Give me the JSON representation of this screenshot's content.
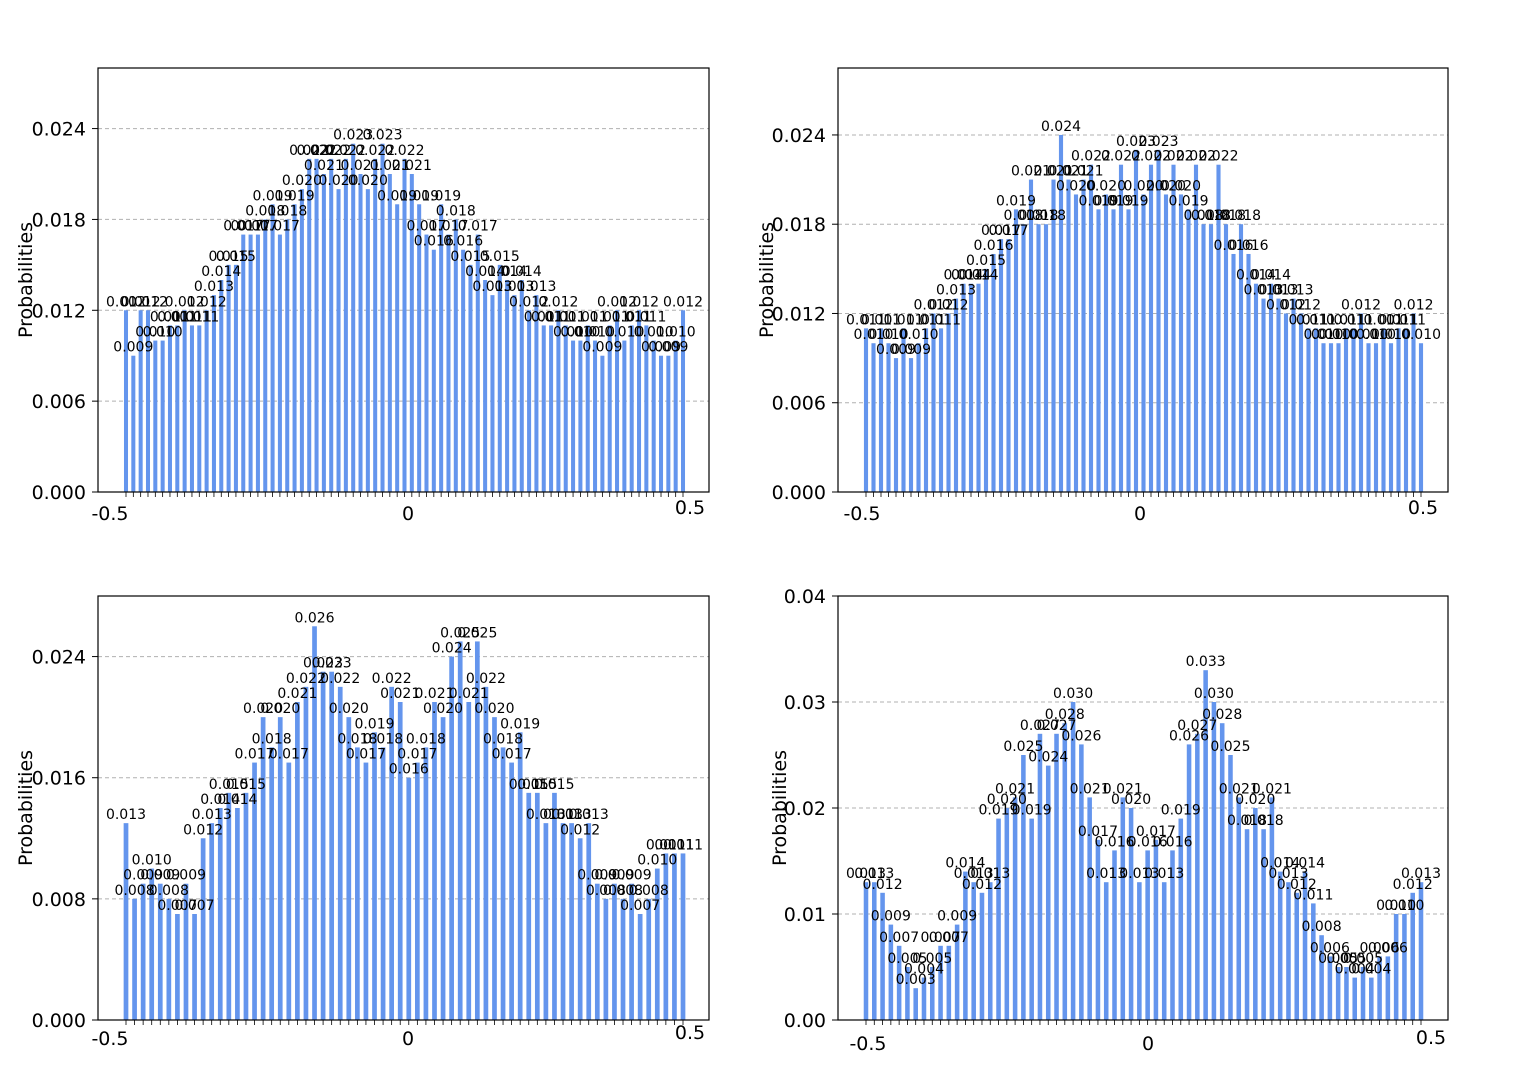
{
  "figure": {
    "bar_color": "#6495ED",
    "grid_color": "#b0b0b0",
    "axis_color": "#000000"
  },
  "chart_data": [
    {
      "type": "bar",
      "ylabel": "Probabilities",
      "ylim": [
        0,
        0.028
      ],
      "yticks": [
        0.0,
        0.006,
        0.012,
        0.018,
        0.024
      ],
      "ytick_labels": [
        "0.000",
        "0.006",
        "0.012",
        "0.018",
        "0.024"
      ],
      "xtick_labels": [
        "-0.5",
        "0",
        "0.5"
      ],
      "grid": "y-dashed",
      "labels_shown": true,
      "values": [
        0.012,
        0.009,
        0.012,
        0.012,
        0.01,
        0.01,
        0.011,
        0.011,
        0.012,
        0.011,
        0.011,
        0.012,
        0.013,
        0.014,
        0.015,
        0.015,
        0.017,
        0.017,
        0.017,
        0.018,
        0.019,
        0.017,
        0.018,
        0.019,
        0.02,
        0.022,
        0.022,
        0.021,
        0.022,
        0.02,
        0.022,
        0.023,
        0.021,
        0.02,
        0.022,
        0.023,
        0.021,
        0.019,
        0.022,
        0.021,
        0.019,
        0.017,
        0.016,
        0.019,
        0.017,
        0.018,
        0.016,
        0.015,
        0.017,
        0.014,
        0.013,
        0.015,
        0.014,
        0.013,
        0.014,
        0.012,
        0.013,
        0.011,
        0.011,
        0.012,
        0.011,
        0.01,
        0.01,
        0.011,
        0.01,
        0.009,
        0.011,
        0.012,
        0.01,
        0.011,
        0.012,
        0.011,
        0.01,
        0.009,
        0.009,
        0.01,
        0.012
      ]
    },
    {
      "type": "bar",
      "ylabel": "Probabilities",
      "ylim": [
        0,
        0.0285
      ],
      "yticks": [
        0.0,
        0.006,
        0.012,
        0.018,
        0.024
      ],
      "ytick_labels": [
        "0.000",
        "0.006",
        "0.012",
        "0.018",
        "0.024"
      ],
      "xtick_labels": [
        "-0.5",
        "0",
        "0.5"
      ],
      "grid": "y-dashed",
      "labels_shown": true,
      "values": [
        0.011,
        0.01,
        0.011,
        0.01,
        0.009,
        0.011,
        0.009,
        0.01,
        0.011,
        0.012,
        0.011,
        0.012,
        0.013,
        0.014,
        0.014,
        0.014,
        0.015,
        0.016,
        0.017,
        0.017,
        0.019,
        0.018,
        0.021,
        0.018,
        0.018,
        0.021,
        0.024,
        0.021,
        0.02,
        0.021,
        0.022,
        0.019,
        0.02,
        0.019,
        0.022,
        0.019,
        0.023,
        0.02,
        0.022,
        0.023,
        0.02,
        0.022,
        0.02,
        0.019,
        0.022,
        0.018,
        0.018,
        0.022,
        0.018,
        0.016,
        0.018,
        0.016,
        0.014,
        0.013,
        0.014,
        0.013,
        0.012,
        0.013,
        0.012,
        0.011,
        0.011,
        0.01,
        0.01,
        0.01,
        0.011,
        0.011,
        0.012,
        0.01,
        0.01,
        0.011,
        0.01,
        0.011,
        0.011,
        0.012,
        0.01
      ]
    },
    {
      "type": "bar",
      "ylabel": "Probabilities",
      "ylim": [
        0,
        0.028
      ],
      "yticks": [
        0.0,
        0.008,
        0.016,
        0.024
      ],
      "ytick_labels": [
        "0.000",
        "0.008",
        "0.016",
        "0.024"
      ],
      "xtick_labels": [
        "-0.5",
        "0",
        "0.5"
      ],
      "grid": "y-dashed",
      "labels_shown": true,
      "values": [
        0.013,
        0.008,
        0.009,
        0.01,
        0.009,
        0.008,
        0.007,
        0.009,
        0.007,
        0.012,
        0.013,
        0.014,
        0.015,
        0.014,
        0.015,
        0.017,
        0.02,
        0.018,
        0.02,
        0.017,
        0.021,
        0.022,
        0.026,
        0.023,
        0.023,
        0.022,
        0.02,
        0.018,
        0.017,
        0.019,
        0.018,
        0.022,
        0.021,
        0.016,
        0.017,
        0.018,
        0.021,
        0.02,
        0.024,
        0.025,
        0.021,
        0.025,
        0.022,
        0.02,
        0.018,
        0.017,
        0.019,
        0.015,
        0.015,
        0.013,
        0.015,
        0.013,
        0.013,
        0.012,
        0.013,
        0.009,
        0.008,
        0.009,
        0.008,
        0.009,
        0.007,
        0.008,
        0.01,
        0.011,
        0.011,
        0.011
      ]
    },
    {
      "type": "bar",
      "ylabel": "Probabilities",
      "ylim": [
        0,
        0.04
      ],
      "yticks": [
        0.0,
        0.01,
        0.02,
        0.03,
        0.04
      ],
      "ytick_labels": [
        "0.00",
        "0.01",
        "0.02",
        "0.03",
        "0.04"
      ],
      "xtick_labels": [
        "-0.5",
        "0",
        "0.5"
      ],
      "grid": "y-dashed",
      "labels_shown": true,
      "values": [
        0.013,
        0.013,
        0.012,
        0.009,
        0.007,
        0.005,
        0.003,
        0.004,
        0.005,
        0.007,
        0.007,
        0.009,
        0.014,
        0.013,
        0.012,
        0.013,
        0.019,
        0.02,
        0.021,
        0.025,
        0.019,
        0.027,
        0.024,
        0.027,
        0.028,
        0.03,
        0.026,
        0.021,
        0.017,
        0.013,
        0.016,
        0.021,
        0.02,
        0.013,
        0.016,
        0.017,
        0.013,
        0.016,
        0.019,
        0.026,
        0.027,
        0.033,
        0.03,
        0.028,
        0.025,
        0.021,
        0.018,
        0.02,
        0.018,
        0.021,
        0.014,
        0.013,
        0.012,
        0.014,
        0.011,
        0.008,
        0.006,
        0.005,
        0.005,
        0.004,
        0.005,
        0.004,
        0.006,
        0.006,
        0.01,
        0.01,
        0.012,
        0.013
      ]
    }
  ]
}
